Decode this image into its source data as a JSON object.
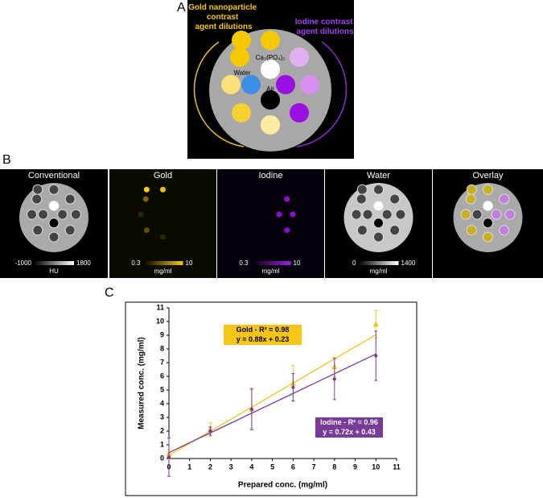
{
  "panel_a": {
    "label": "A",
    "gold_label": [
      "Gold nanoparticle",
      "contrast",
      "agent dilutions"
    ],
    "iodine_label": [
      "Iodine contrast",
      "agent dilutions"
    ],
    "calcium_label": "Ca₃(PO₄)₂",
    "water_label": "Water",
    "air_label": "Air"
  },
  "panel_b": {
    "label": "B",
    "panels": [
      {
        "title": "Conventional",
        "min": "-1000",
        "max": "1800",
        "unit": "HU"
      },
      {
        "title": "Gold",
        "min": "0.3",
        "max": "10",
        "unit": "mg/ml"
      },
      {
        "title": "Iodine",
        "min": "0.3",
        "max": "10",
        "unit": "mg/ml"
      },
      {
        "title": "Water",
        "min": "0",
        "max": "1400",
        "unit": "mg/ml"
      },
      {
        "title": "Overlay"
      }
    ]
  },
  "panel_c": {
    "label": "C"
  },
  "chart_data": {
    "type": "scatter",
    "x_label": "Prepared conc. (mg/ml)",
    "y_label": "Measured conc. (mg/ml)",
    "x": [
      0,
      2,
      4,
      6,
      8,
      10
    ],
    "series": [
      {
        "color": "#f2c31a",
        "marker": "triangle",
        "values": [
          0.35,
          2.1,
          3.6,
          5.5,
          6.7,
          9.8
        ],
        "errors": [
          0.3,
          0.5,
          1.4,
          1.3,
          0.7,
          1.0
        ],
        "fit": {
          "slope": 0.88,
          "intercept": 0.23
        },
        "annotation": [
          "Gold - R² = 0.98",
          "y = 0.88x + 0.23"
        ]
      },
      {
        "color": "#7a3a9a",
        "marker": "diamond",
        "values": [
          0.1,
          2.0,
          3.6,
          5.2,
          5.8,
          7.5
        ],
        "errors": [
          1.4,
          0.3,
          1.5,
          1.0,
          1.5,
          1.8
        ],
        "fit": {
          "slope": 0.72,
          "intercept": 0.43
        },
        "annotation": [
          "Iodine - R² = 0.96",
          "y = 0.72x + 0.43"
        ]
      }
    ],
    "xlim": [
      0,
      11
    ],
    "xticks": [
      0,
      1,
      2,
      3,
      4,
      5,
      6,
      7,
      8,
      9,
      10,
      11
    ],
    "ylim": [
      0,
      11
    ],
    "yticks": [
      0,
      1,
      2,
      3,
      4,
      5,
      6,
      7,
      8,
      9,
      10,
      11
    ]
  }
}
